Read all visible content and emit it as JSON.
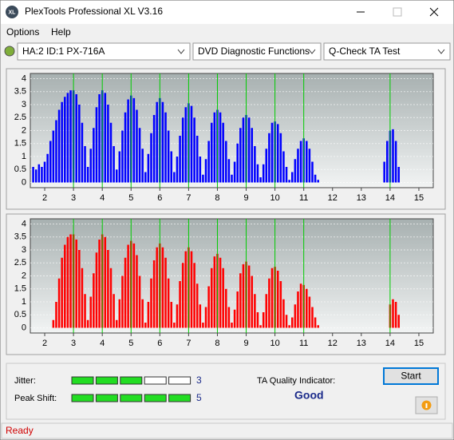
{
  "window": {
    "icon": "XL",
    "title": "PlexTools Professional XL V3.16"
  },
  "menu": [
    "Options",
    "Help"
  ],
  "toolbar": {
    "drive": "HA:2 ID:1  PX-716A",
    "function": "DVD Diagnostic Functions",
    "test": "Q-Check TA Test"
  },
  "chart_data": [
    {
      "type": "bar",
      "color": "#0000ff",
      "marker_color": "#00cc00",
      "grid": true,
      "xlim": [
        1.5,
        15.5
      ],
      "ylim": [
        -0.2,
        4.2
      ],
      "xticks": [
        2,
        3,
        4,
        5,
        6,
        7,
        8,
        9,
        10,
        11,
        12,
        13,
        14,
        15
      ],
      "yticks": [
        4,
        3.5,
        3,
        2.5,
        2,
        1.5,
        1,
        0.5,
        0
      ],
      "marker_lines": [
        3,
        4,
        5,
        6,
        7,
        8,
        9,
        10,
        11,
        14
      ],
      "x": [
        1.6,
        1.7,
        1.8,
        1.9,
        2.0,
        2.1,
        2.2,
        2.3,
        2.4,
        2.5,
        2.6,
        2.7,
        2.8,
        2.9,
        3.0,
        3.1,
        3.2,
        3.3,
        3.4,
        3.5,
        3.6,
        3.7,
        3.8,
        3.9,
        4.0,
        4.1,
        4.2,
        4.3,
        4.4,
        4.5,
        4.6,
        4.7,
        4.8,
        4.9,
        5.0,
        5.1,
        5.2,
        5.3,
        5.4,
        5.5,
        5.6,
        5.7,
        5.8,
        5.9,
        6.0,
        6.1,
        6.2,
        6.3,
        6.4,
        6.5,
        6.6,
        6.7,
        6.8,
        6.9,
        7.0,
        7.1,
        7.2,
        7.3,
        7.4,
        7.5,
        7.6,
        7.7,
        7.8,
        7.9,
        8.0,
        8.1,
        8.2,
        8.3,
        8.4,
        8.5,
        8.6,
        8.7,
        8.8,
        8.9,
        9.0,
        9.1,
        9.2,
        9.3,
        9.4,
        9.5,
        9.6,
        9.7,
        9.8,
        9.9,
        10.0,
        10.1,
        10.2,
        10.3,
        10.4,
        10.5,
        10.6,
        10.7,
        10.8,
        10.9,
        11.0,
        11.1,
        11.2,
        11.3,
        11.4,
        11.5,
        13.8,
        13.9,
        14.0,
        14.1,
        14.2,
        14.3
      ],
      "values": [
        0.6,
        0.5,
        0.7,
        0.6,
        0.8,
        1.1,
        1.6,
        2.0,
        2.4,
        2.8,
        3.1,
        3.3,
        3.45,
        3.55,
        3.55,
        3.4,
        3.0,
        2.3,
        1.4,
        0.6,
        1.3,
        2.1,
        2.9,
        3.4,
        3.55,
        3.45,
        3.0,
        2.3,
        1.4,
        0.5,
        1.2,
        2.0,
        2.7,
        3.2,
        3.35,
        3.25,
        2.8,
        2.1,
        1.3,
        0.4,
        1.1,
        1.9,
        2.6,
        3.1,
        3.25,
        3.1,
        2.7,
        2.0,
        1.2,
        0.4,
        1.0,
        1.8,
        2.5,
        2.9,
        3.05,
        2.95,
        2.5,
        1.8,
        1.0,
        0.3,
        0.9,
        1.6,
        2.3,
        2.7,
        2.8,
        2.7,
        2.3,
        1.6,
        0.9,
        0.3,
        0.8,
        1.5,
        2.1,
        2.5,
        2.6,
        2.5,
        2.1,
        1.4,
        0.7,
        0.2,
        0.7,
        1.3,
        1.9,
        2.3,
        2.35,
        2.25,
        1.9,
        1.2,
        0.6,
        0.1,
        0.4,
        0.9,
        1.3,
        1.6,
        1.7,
        1.6,
        1.3,
        0.8,
        0.3,
        0.1,
        0.8,
        1.6,
        2.0,
        2.05,
        1.6,
        0.6
      ]
    },
    {
      "type": "bar",
      "color": "#ff0000",
      "marker_color": "#00cc00",
      "grid": true,
      "xlim": [
        1.5,
        15.5
      ],
      "ylim": [
        -0.2,
        4.2
      ],
      "xticks": [
        2,
        3,
        4,
        5,
        6,
        7,
        8,
        9,
        10,
        11,
        12,
        13,
        14,
        15
      ],
      "yticks": [
        4,
        3.5,
        3,
        2.5,
        2,
        1.5,
        1,
        0.5,
        0
      ],
      "marker_lines": [
        3,
        4,
        5,
        6,
        7,
        8,
        9,
        10,
        11,
        14
      ],
      "x": [
        2.3,
        2.4,
        2.5,
        2.6,
        2.7,
        2.8,
        2.9,
        3.0,
        3.1,
        3.2,
        3.3,
        3.4,
        3.5,
        3.6,
        3.7,
        3.8,
        3.9,
        4.0,
        4.1,
        4.2,
        4.3,
        4.4,
        4.5,
        4.6,
        4.7,
        4.8,
        4.9,
        5.0,
        5.1,
        5.2,
        5.3,
        5.4,
        5.5,
        5.6,
        5.7,
        5.8,
        5.9,
        6.0,
        6.1,
        6.2,
        6.3,
        6.4,
        6.5,
        6.6,
        6.7,
        6.8,
        6.9,
        7.0,
        7.1,
        7.2,
        7.3,
        7.4,
        7.5,
        7.6,
        7.7,
        7.8,
        7.9,
        8.0,
        8.1,
        8.2,
        8.3,
        8.4,
        8.5,
        8.6,
        8.7,
        8.8,
        8.9,
        9.0,
        9.1,
        9.2,
        9.3,
        9.4,
        9.5,
        9.6,
        9.7,
        9.8,
        9.9,
        10.0,
        10.1,
        10.2,
        10.3,
        10.4,
        10.5,
        10.6,
        10.7,
        10.8,
        10.9,
        11.0,
        11.1,
        11.2,
        11.3,
        11.4,
        11.5,
        14.0,
        14.1,
        14.2,
        14.3
      ],
      "values": [
        0.3,
        1.0,
        1.9,
        2.7,
        3.2,
        3.5,
        3.6,
        3.6,
        3.4,
        3.0,
        2.3,
        1.3,
        0.3,
        1.2,
        2.1,
        2.9,
        3.4,
        3.6,
        3.5,
        3.0,
        2.3,
        1.3,
        0.3,
        1.1,
        2.0,
        2.7,
        3.2,
        3.35,
        3.25,
        2.8,
        2.0,
        1.1,
        0.2,
        1.0,
        1.9,
        2.6,
        3.1,
        3.25,
        3.1,
        2.7,
        1.9,
        1.0,
        0.2,
        0.9,
        1.8,
        2.5,
        2.95,
        3.1,
        2.95,
        2.5,
        1.7,
        0.9,
        0.2,
        0.8,
        1.6,
        2.3,
        2.75,
        2.85,
        2.7,
        2.3,
        1.5,
        0.8,
        0.2,
        0.7,
        1.4,
        2.1,
        2.45,
        2.55,
        2.4,
        2.0,
        1.3,
        0.6,
        0.1,
        0.6,
        1.3,
        1.9,
        2.3,
        2.35,
        2.2,
        1.8,
        1.1,
        0.5,
        0.1,
        0.4,
        0.9,
        1.4,
        1.7,
        1.65,
        1.5,
        1.2,
        0.8,
        0.4,
        0.1,
        0.9,
        1.1,
        1.0,
        0.5
      ]
    }
  ],
  "results": {
    "jitter": {
      "label": "Jitter:",
      "value": 3,
      "max": 5
    },
    "peak_shift": {
      "label": "Peak Shift:",
      "value": 5,
      "max": 5
    },
    "quality": {
      "label": "TA Quality Indicator:",
      "value": "Good"
    },
    "start": "Start"
  },
  "status": "Ready"
}
